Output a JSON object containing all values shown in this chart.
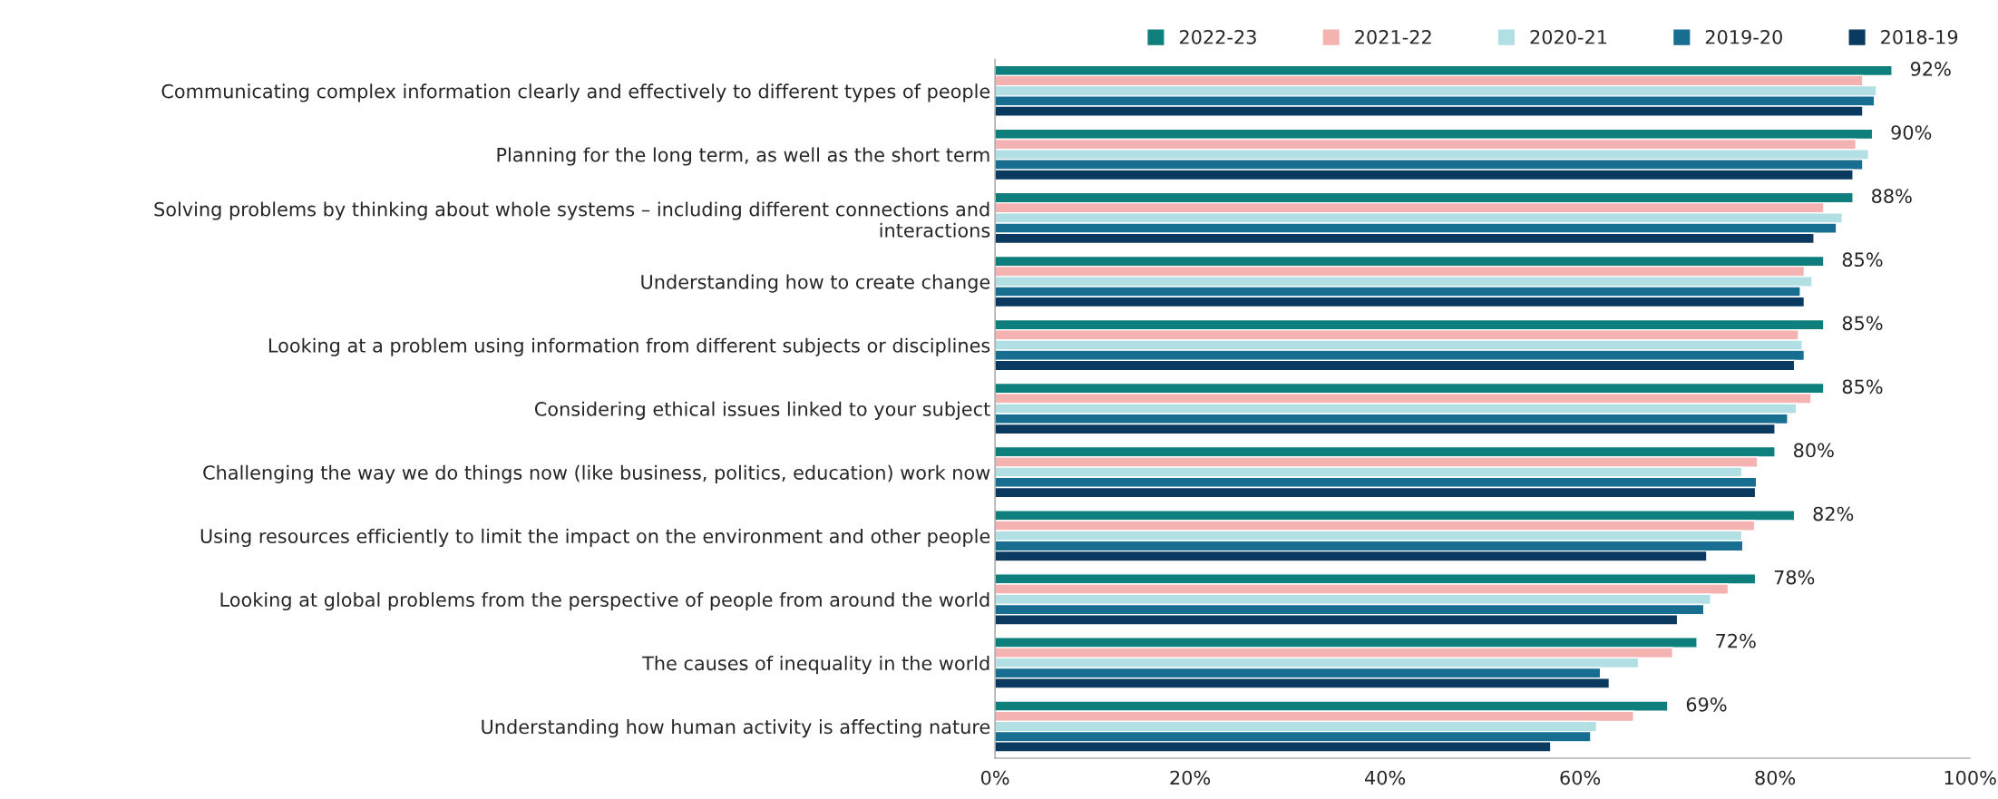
{
  "chart_data": {
    "type": "bar",
    "orientation": "horizontal",
    "categories": [
      "Communicating complex information clearly and effectively to different types of people",
      "Planning for the long term, as well as the short term",
      "Solving problems by thinking about whole systems – including different connections and\ninteractions",
      "Understanding how to create change",
      "Looking at a problem using information from different subjects or disciplines",
      "Considering ethical issues linked to your subject",
      "Challenging the way we do things now (like business, politics, education) work now",
      "Using resources efficiently to limit the impact on the environment and other people",
      "Looking at global problems from the perspective of people from around the world",
      "The causes of inequality in the world",
      "Understanding how human activity is affecting nature"
    ],
    "series": [
      {
        "name": "2022-23",
        "color": "#0e7f7d",
        "values": [
          92,
          90,
          88,
          85,
          85,
          85,
          80,
          82,
          78,
          72,
          69
        ],
        "value_labels": [
          "92%",
          "90%",
          "88%",
          "85%",
          "85%",
          "85%",
          "80%",
          "82%",
          "78%",
          "72%",
          "69%"
        ]
      },
      {
        "name": "2021-22",
        "color": "#f4b3b1",
        "values": [
          89.0,
          88.3,
          85.0,
          83.0,
          82.4,
          83.7,
          78.2,
          77.9,
          75.2,
          69.5,
          65.5
        ]
      },
      {
        "name": "2020-21",
        "color": "#b2dfe3",
        "values": [
          90.4,
          89.6,
          86.9,
          83.8,
          82.8,
          82.2,
          76.6,
          76.6,
          73.4,
          66.0,
          61.7
        ]
      },
      {
        "name": "2019-20",
        "color": "#176e91",
        "values": [
          90.2,
          89.0,
          86.3,
          82.6,
          83.0,
          81.3,
          78.1,
          76.7,
          72.7,
          62.1,
          61.1
        ]
      },
      {
        "name": "2018-19",
        "color": "#0a3a5f",
        "values": [
          89.0,
          88.0,
          84.0,
          83.0,
          82.0,
          80.0,
          78.0,
          73.0,
          70.0,
          63.0,
          57.0
        ]
      }
    ],
    "xlim": [
      0,
      100
    ],
    "xticks": [
      {
        "value": 0,
        "label": "0%"
      },
      {
        "value": 20,
        "label": "20%"
      },
      {
        "value": 40,
        "label": "40%"
      },
      {
        "value": 60,
        "label": "60%"
      },
      {
        "value": 80,
        "label": "80%"
      },
      {
        "value": 100,
        "label": "100%"
      }
    ],
    "grid": false,
    "legend": "top right"
  }
}
